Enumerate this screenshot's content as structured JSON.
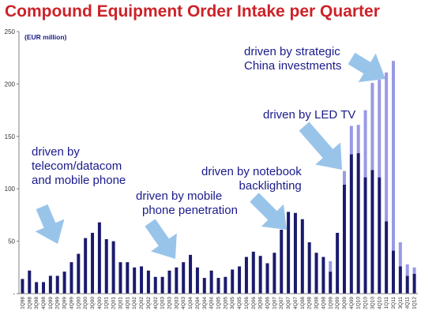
{
  "title": "Compound Equipment Order Intake per Quarter",
  "colors": {
    "title": "#cc2229",
    "bar_dark": "#1a1a6e",
    "bar_light": "#9999e6",
    "arrow": "#99c4ea",
    "annotation": "#1a1a8c"
  },
  "chart_data": {
    "type": "bar",
    "unit_label": "(EUR million)",
    "ylim": [
      0,
      250
    ],
    "yticks": [
      "-",
      "50",
      "100",
      "150",
      "200",
      "250"
    ],
    "grid": false,
    "categories": [
      "1Q98",
      "2Q98",
      "3Q98",
      "4Q98",
      "1Q99",
      "2Q99",
      "3Q99",
      "4Q99",
      "1Q00",
      "2Q00",
      "3Q00",
      "4Q00",
      "1Q01",
      "2Q01",
      "3Q01",
      "4Q01",
      "1Q02",
      "2Q02",
      "3Q02",
      "4Q02",
      "1Q03",
      "2Q03",
      "3Q03",
      "4Q03",
      "1Q04",
      "2Q04",
      "3Q04",
      "4Q04",
      "1Q05",
      "2Q05",
      "3Q05",
      "4Q05",
      "1Q06",
      "2Q06",
      "3Q06",
      "4Q06",
      "1Q07",
      "2Q07",
      "3Q07",
      "4Q07",
      "1Q08",
      "2Q08",
      "3Q08",
      "4Q08",
      "1Q09",
      "2Q09",
      "3Q09",
      "4Q09",
      "1Q10",
      "2Q10",
      "3Q10",
      "4Q10",
      "1Q11",
      "2Q11",
      "3Q11",
      "4Q11",
      "1Q12"
    ],
    "series": [
      {
        "values": [
          14,
          22,
          11,
          11,
          17,
          17,
          21,
          30,
          38,
          53,
          58,
          68,
          52,
          50,
          30,
          30,
          25,
          26,
          22,
          16,
          16,
          22,
          25,
          30,
          37,
          25,
          15,
          22,
          15,
          16,
          23,
          26,
          35,
          40,
          36,
          29,
          39,
          61,
          78,
          77,
          71,
          49,
          39,
          35,
          21,
          58,
          104,
          133,
          134,
          111,
          118,
          111,
          69,
          41,
          26,
          17,
          19
        ]
      },
      {
        "values": [
          0,
          0,
          0,
          0,
          0,
          0,
          0,
          0,
          0,
          0,
          0,
          0,
          0,
          0,
          0,
          0,
          0,
          0,
          0,
          0,
          0,
          0,
          0,
          0,
          0,
          0,
          0,
          0,
          0,
          0,
          0,
          0,
          0,
          0,
          0,
          0,
          0,
          0,
          0,
          0,
          0,
          0,
          0,
          0,
          10,
          0,
          13,
          27,
          27,
          64,
          83,
          93,
          142,
          181,
          23,
          11,
          6
        ]
      }
    ],
    "annotations": [
      {
        "lines": [
          "driven by",
          "telecom/datacom",
          "and mobile phone"
        ]
      },
      {
        "lines": [
          "driven by mobile",
          "phone penetration"
        ]
      },
      {
        "lines": [
          "driven by notebook",
          "backlighting"
        ]
      },
      {
        "lines": [
          "driven by LED TV"
        ]
      },
      {
        "lines": [
          "driven by strategic",
          "China investments"
        ]
      }
    ]
  }
}
